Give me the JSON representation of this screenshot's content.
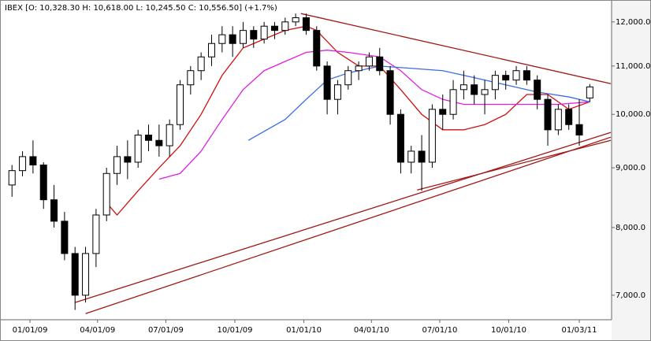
{
  "chart_data": {
    "type": "candlestick",
    "title": "IBEX [O: 10,328.30  H: 10,618.00  L: 10,245.50  C: 10,556.50] (+1.7%)",
    "x": [
      "12/08/08",
      "12/22/08",
      "01/05/09",
      "01/19/09",
      "02/02/09",
      "02/16/09",
      "03/02/09",
      "03/16/09",
      "03/30/09",
      "04/13/09",
      "04/27/09",
      "05/11/09",
      "05/25/09",
      "06/08/09",
      "06/22/09",
      "07/06/09",
      "07/20/09",
      "08/03/09",
      "08/17/09",
      "08/31/09",
      "09/14/09",
      "09/28/09",
      "10/12/09",
      "10/26/09",
      "11/09/09",
      "11/23/09",
      "12/07/09",
      "12/21/09",
      "01/04/10",
      "01/18/10",
      "02/01/10",
      "02/15/10",
      "03/01/10",
      "03/15/10",
      "03/29/10",
      "04/12/10",
      "04/26/10",
      "05/10/10",
      "05/24/10",
      "06/07/10",
      "06/21/10",
      "07/05/10",
      "07/19/10",
      "08/02/10",
      "08/16/10",
      "08/30/10",
      "09/13/10",
      "09/27/10",
      "10/11/10",
      "10/25/10",
      "11/08/10",
      "11/22/10",
      "12/06/10",
      "12/20/10",
      "01/03/11",
      "01/17/11"
    ],
    "open": [
      8700,
      8950,
      9200,
      9050,
      8450,
      8100,
      7600,
      7000,
      7600,
      8200,
      8900,
      9200,
      9100,
      9600,
      9500,
      9400,
      9800,
      10600,
      10900,
      11200,
      11500,
      11700,
      11500,
      11800,
      11600,
      11900,
      11800,
      12000,
      12100,
      11800,
      11000,
      10300,
      10600,
      10900,
      11000,
      11200,
      10900,
      10000,
      9100,
      9300,
      9100,
      10100,
      10000,
      10500,
      10600,
      10400,
      10500,
      10800,
      10700,
      10900,
      10700,
      10300,
      9700,
      10100,
      9800,
      10328.3
    ],
    "high": [
      9050,
      9300,
      9500,
      9100,
      8700,
      8250,
      7700,
      7700,
      8300,
      9000,
      9400,
      9500,
      9700,
      9800,
      9800,
      9900,
      10700,
      11000,
      11300,
      11700,
      11900,
      11900,
      12000,
      11900,
      12000,
      12000,
      12100,
      12200,
      12200,
      11900,
      11100,
      10700,
      11000,
      11100,
      11300,
      11400,
      11000,
      10100,
      9400,
      9600,
      10200,
      10400,
      10700,
      10900,
      10800,
      10700,
      10900,
      10900,
      11000,
      11000,
      10800,
      10400,
      10200,
      10200,
      10300,
      10618
    ],
    "low": [
      8500,
      8850,
      8900,
      8300,
      8000,
      7500,
      6800,
      6900,
      7400,
      8100,
      8700,
      8800,
      9000,
      9300,
      9200,
      9200,
      9700,
      10400,
      10700,
      11000,
      11300,
      11200,
      11400,
      11400,
      11500,
      11600,
      11700,
      11900,
      11700,
      10900,
      10000,
      10000,
      10500,
      10700,
      10900,
      10800,
      9800,
      8900,
      8900,
      8600,
      9000,
      9700,
      9900,
      10300,
      10200,
      10000,
      10300,
      10500,
      10600,
      10600,
      10100,
      9400,
      9600,
      9700,
      9400,
      10245.5
    ],
    "close": [
      8950,
      9200,
      9050,
      8450,
      8100,
      7600,
      7000,
      7600,
      8200,
      8900,
      9200,
      9100,
      9600,
      9500,
      9400,
      9800,
      10600,
      10900,
      11200,
      11500,
      11700,
      11500,
      11800,
      11600,
      11900,
      11800,
      12000,
      12100,
      11800,
      11000,
      10300,
      10600,
      10900,
      11000,
      11200,
      10900,
      10000,
      9100,
      9300,
      9100,
      10100,
      10000,
      10500,
      10600,
      10400,
      10500,
      10800,
      10700,
      10900,
      10700,
      10300,
      9700,
      10100,
      9800,
      9600,
      10556.5
    ],
    "series": [
      {
        "color": "#d01010",
        "x": [
          "04/13/09",
          "04/27/09",
          "05/25/09",
          "06/22/09",
          "07/20/09",
          "08/17/09",
          "09/14/09",
          "10/12/09",
          "11/09/09",
          "12/07/09",
          "01/04/10",
          "01/18/10",
          "02/15/10",
          "03/15/10",
          "04/12/10",
          "05/10/10",
          "06/07/10",
          "07/05/10",
          "08/02/10",
          "08/30/10",
          "09/27/10",
          "10/25/10",
          "11/22/10",
          "12/20/10",
          "01/17/11"
        ],
        "values": [
          8400,
          8200,
          8600,
          9000,
          9400,
          10000,
          10800,
          11400,
          11600,
          11800,
          11900,
          11800,
          11300,
          11000,
          11000,
          10500,
          10000,
          9700,
          9700,
          9800,
          10000,
          10400,
          10400,
          10100,
          10250
        ]
      },
      {
        "color": "#e020e0",
        "x": [
          "06/22/09",
          "07/20/09",
          "08/17/09",
          "09/14/09",
          "10/12/09",
          "11/09/09",
          "12/07/09",
          "01/04/10",
          "02/01/10",
          "03/01/10",
          "04/12/10",
          "05/10/10",
          "06/07/10",
          "07/05/10",
          "08/02/10",
          "09/13/10",
          "10/25/10",
          "12/06/10",
          "01/17/11"
        ],
        "values": [
          8800,
          8900,
          9300,
          9900,
          10500,
          10900,
          11100,
          11300,
          11350,
          11300,
          11200,
          10900,
          10500,
          10300,
          10200,
          10200,
          10200,
          10200,
          10250
        ]
      },
      {
        "color": "#3a6ee0",
        "x": [
          "10/19/09",
          "12/07/09",
          "01/04/10",
          "02/01/10",
          "03/01/10",
          "04/12/10",
          "05/24/10",
          "07/05/10",
          "08/16/10",
          "09/27/10",
          "11/08/10",
          "12/20/10",
          "01/17/11"
        ],
        "values": [
          9500,
          9900,
          10300,
          10700,
          10850,
          11000,
          10950,
          10900,
          10750,
          10600,
          10450,
          10350,
          10250
        ]
      },
      {
        "color": "#a01818",
        "x": [
          "12/28/09",
          "02/14/11"
        ],
        "values": [
          12200,
          10624
        ]
      },
      {
        "color": "#a01818",
        "x": [
          "03/02/09",
          "02/14/11"
        ],
        "values": [
          6900,
          9650
        ]
      },
      {
        "color": "#a01818",
        "x": [
          "03/16/09",
          "02/14/11"
        ],
        "values": [
          6750,
          9560
        ]
      },
      {
        "color": "#a01818",
        "x": [
          "06/01/10",
          "02/14/11"
        ],
        "values": [
          8615,
          9500
        ]
      }
    ],
    "xlim": [
      "11/22/08",
      "02/14/11"
    ],
    "xticks": [
      "01/01/09",
      "04/01/09",
      "07/01/09",
      "10/01/09",
      "01/01/10",
      "04/01/10",
      "07/01/10",
      "10/01/10",
      "01/03/11"
    ],
    "ylim": [
      6680,
      12530
    ],
    "log_scale": true,
    "yticks": [
      {
        "value": 7000,
        "label": "7,000.0"
      },
      {
        "value": 8000,
        "label": "8,000.0"
      },
      {
        "value": 9000,
        "label": "9,000.0"
      },
      {
        "value": 10000,
        "label": "10,000.0"
      },
      {
        "value": 11000,
        "label": "11,000.0"
      },
      {
        "value": 12000,
        "label": "12,000.0"
      }
    ]
  }
}
